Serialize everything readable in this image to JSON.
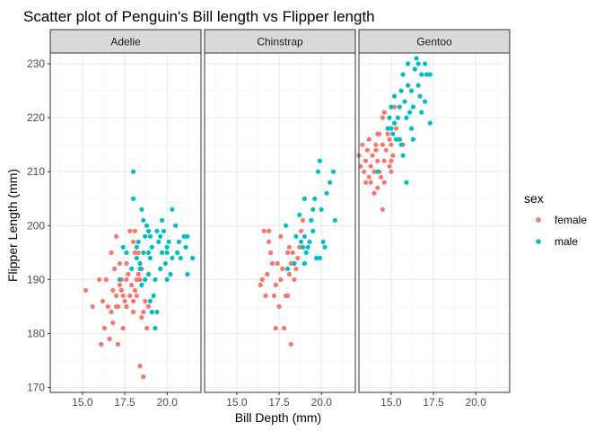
{
  "chart_data": {
    "type": "scatter",
    "title": "Scatter plot of Penguin's Bill length vs Flipper length",
    "xlabel": "Bill Depth (mm)",
    "ylabel": "Flipper Length (mm)",
    "xlim": [
      13.1,
      22.0
    ],
    "ylim": [
      169.1,
      232.0
    ],
    "x_ticks": [
      "15.0",
      "17.5",
      "20.0"
    ],
    "y_ticks": [
      "170",
      "180",
      "190",
      "200",
      "210",
      "220",
      "230"
    ],
    "grid": true,
    "legend": {
      "title": "sex",
      "placement": "right"
    },
    "colors": {
      "female": "#F8766D",
      "male": "#00BFC4"
    },
    "facets": [
      {
        "name": "Adelie",
        "series": [
          {
            "name": "female",
            "points": [
              [
                16.1,
                178
              ],
              [
                16.3,
                181
              ],
              [
                16.6,
                179
              ],
              [
                16.5,
                185
              ],
              [
                16.7,
                184
              ],
              [
                16.8,
                182
              ],
              [
                17.0,
                185
              ],
              [
                17.0,
                187
              ],
              [
                17.1,
                185
              ],
              [
                17.2,
                189
              ],
              [
                17.3,
                190
              ],
              [
                17.3,
                188
              ],
              [
                17.4,
                187
              ],
              [
                17.5,
                186
              ],
              [
                17.6,
                185
              ],
              [
                17.6,
                190
              ],
              [
                17.7,
                191
              ],
              [
                17.8,
                187
              ],
              [
                17.9,
                189
              ],
              [
                18.0,
                184
              ],
              [
                18.0,
                186
              ],
              [
                18.1,
                188
              ],
              [
                18.2,
                190
              ],
              [
                18.2,
                187
              ],
              [
                18.3,
                191
              ],
              [
                18.4,
                193
              ],
              [
                18.4,
                190
              ],
              [
                18.5,
                183
              ],
              [
                18.6,
                184
              ],
              [
                18.7,
                186
              ],
              [
                18.7,
                190
              ],
              [
                18.8,
                181
              ],
              [
                18.9,
                185
              ],
              [
                18.1,
                195
              ],
              [
                18.3,
                195
              ],
              [
                18.1,
                199
              ],
              [
                17.8,
                199
              ],
              [
                18.4,
                174
              ],
              [
                18.6,
                172
              ],
              [
                17.1,
                178
              ],
              [
                15.2,
                188
              ],
              [
                15.6,
                185
              ],
              [
                16.2,
                186
              ],
              [
                16.8,
                188
              ],
              [
                16.4,
                190
              ],
              [
                16.9,
                192
              ],
              [
                17.2,
                193
              ],
              [
                17.4,
                181
              ],
              [
                16.0,
                190
              ],
              [
                17.0,
                198
              ],
              [
                17.6,
                193
              ],
              [
                18.0,
                197
              ],
              [
                18.5,
                192
              ],
              [
                16.7,
                195
              ]
            ]
          },
          {
            "name": "male",
            "points": [
              [
                17.2,
                190
              ],
              [
                17.4,
                196
              ],
              [
                17.6,
                195
              ],
              [
                17.9,
                192
              ],
              [
                18.0,
                210
              ],
              [
                18.0,
                205
              ],
              [
                18.2,
                196
              ],
              [
                18.3,
                197
              ],
              [
                18.4,
                193
              ],
              [
                18.5,
                189
              ],
              [
                18.5,
                203
              ],
              [
                18.6,
                201
              ],
              [
                18.6,
                195
              ],
              [
                18.7,
                190
              ],
              [
                18.7,
                198
              ],
              [
                18.8,
                200
              ],
              [
                18.9,
                195
              ],
              [
                18.9,
                191
              ],
              [
                19.0,
                198
              ],
              [
                19.0,
                194
              ],
              [
                19.1,
                196
              ],
              [
                19.1,
                184
              ],
              [
                19.2,
                187
              ],
              [
                19.3,
                190
              ],
              [
                19.4,
                199
              ],
              [
                19.4,
                184
              ],
              [
                19.5,
                197
              ],
              [
                19.6,
                192
              ],
              [
                19.7,
                195
              ],
              [
                19.7,
                201
              ],
              [
                19.8,
                199
              ],
              [
                19.9,
                193
              ],
              [
                20.0,
                196
              ],
              [
                20.0,
                190
              ],
              [
                20.1,
                197
              ],
              [
                20.2,
                191
              ],
              [
                20.3,
                194
              ],
              [
                20.5,
                200
              ],
              [
                20.6,
                195
              ],
              [
                20.7,
                197
              ],
              [
                20.8,
                194
              ],
              [
                21.1,
                196
              ],
              [
                21.2,
                191
              ],
              [
                21.5,
                194
              ],
              [
                18.2,
                194
              ],
              [
                18.9,
                199
              ],
              [
                19.3,
                181
              ],
              [
                19.6,
                198
              ],
              [
                20.3,
                203
              ],
              [
                21.0,
                198
              ],
              [
                19.0,
                186
              ],
              [
                20.0,
                195
              ],
              [
                18.4,
                192
              ],
              [
                21.2,
                198
              ]
            ]
          }
        ]
      },
      {
        "name": "Chinstrap",
        "series": [
          {
            "name": "female",
            "points": [
              [
                16.4,
                189
              ],
              [
                16.5,
                190
              ],
              [
                16.6,
                199
              ],
              [
                16.7,
                187
              ],
              [
                16.8,
                191
              ],
              [
                16.9,
                197
              ],
              [
                17.0,
                195
              ],
              [
                17.1,
                193
              ],
              [
                17.2,
                187
              ],
              [
                17.3,
                181
              ],
              [
                17.5,
                185
              ],
              [
                17.6,
                190
              ],
              [
                17.6,
                198
              ],
              [
                17.7,
                192
              ],
              [
                17.8,
                181
              ],
              [
                17.9,
                187
              ],
              [
                18.0,
                195
              ],
              [
                18.1,
                191
              ],
              [
                18.2,
                178
              ],
              [
                18.2,
                193
              ],
              [
                18.3,
                195
              ],
              [
                18.4,
                190
              ],
              [
                18.5,
                192
              ],
              [
                18.6,
                194
              ],
              [
                18.7,
                196
              ],
              [
                18.8,
                199
              ],
              [
                18.9,
                201
              ],
              [
                17.3,
                189
              ],
              [
                18.1,
                196
              ],
              [
                17.4,
                193
              ],
              [
                16.9,
                199
              ],
              [
                18.0,
                187
              ]
            ]
          },
          {
            "name": "male",
            "points": [
              [
                17.9,
                200
              ],
              [
                18.0,
                192
              ],
              [
                18.4,
                193
              ],
              [
                18.5,
                198
              ],
              [
                18.7,
                202
              ],
              [
                18.8,
                197
              ],
              [
                18.9,
                196
              ],
              [
                19.0,
                198
              ],
              [
                19.0,
                193
              ],
              [
                19.1,
                195
              ],
              [
                19.2,
                196
              ],
              [
                19.3,
                197
              ],
              [
                19.4,
                201
              ],
              [
                19.5,
                203
              ],
              [
                19.5,
                199
              ],
              [
                19.6,
                205
              ],
              [
                19.7,
                194
              ],
              [
                19.8,
                210
              ],
              [
                19.9,
                212
              ],
              [
                20.0,
                203
              ],
              [
                20.1,
                197
              ],
              [
                20.3,
                206
              ],
              [
                20.5,
                208
              ],
              [
                20.7,
                210
              ],
              [
                20.8,
                201
              ],
              [
                19.9,
                194
              ],
              [
                19.0,
                205
              ],
              [
                20.2,
                196
              ]
            ]
          }
        ]
      },
      {
        "name": "Gentoo",
        "series": [
          {
            "name": "female",
            "points": [
              [
                13.1,
                213
              ],
              [
                13.2,
                211
              ],
              [
                13.3,
                215
              ],
              [
                13.4,
                210
              ],
              [
                13.5,
                212
              ],
              [
                13.6,
                214
              ],
              [
                13.7,
                209
              ],
              [
                13.7,
                216
              ],
              [
                13.8,
                211
              ],
              [
                13.9,
                213
              ],
              [
                14.0,
                210
              ],
              [
                14.1,
                215
              ],
              [
                14.2,
                217
              ],
              [
                14.2,
                212
              ],
              [
                14.3,
                210
              ],
              [
                14.4,
                209
              ],
              [
                14.5,
                215
              ],
              [
                14.5,
                220
              ],
              [
                14.6,
                212
              ],
              [
                14.6,
                208
              ],
              [
                14.7,
                214
              ],
              [
                14.8,
                217
              ],
              [
                14.9,
                216
              ],
              [
                14.9,
                211
              ],
              [
                15.0,
                212
              ],
              [
                15.0,
                215
              ],
              [
                15.1,
                213
              ],
              [
                15.2,
                222
              ],
              [
                15.3,
                218
              ],
              [
                15.5,
                216
              ],
              [
                14.5,
                203
              ],
              [
                14.0,
                206
              ],
              [
                13.8,
                208
              ],
              [
                14.3,
                217
              ],
              [
                14.6,
                221
              ],
              [
                13.5,
                208
              ],
              [
                14.1,
                214
              ],
              [
                15.0,
                210
              ],
              [
                14.2,
                207
              ],
              [
                15.7,
                215
              ]
            ]
          },
          {
            "name": "male",
            "points": [
              [
                14.2,
                210
              ],
              [
                14.8,
                218
              ],
              [
                14.9,
                220
              ],
              [
                15.0,
                222
              ],
              [
                15.1,
                217
              ],
              [
                15.2,
                224
              ],
              [
                15.3,
                216
              ],
              [
                15.4,
                220
              ],
              [
                15.5,
                222
              ],
              [
                15.6,
                225
              ],
              [
                15.7,
                213
              ],
              [
                15.7,
                228
              ],
              [
                15.8,
                223
              ],
              [
                15.9,
                220
              ],
              [
                16.0,
                226
              ],
              [
                16.0,
                230
              ],
              [
                16.1,
                221
              ],
              [
                16.2,
                218
              ],
              [
                16.3,
                216
              ],
              [
                16.3,
                222
              ],
              [
                16.4,
                229
              ],
              [
                16.5,
                231
              ],
              [
                16.6,
                230
              ],
              [
                16.7,
                224
              ],
              [
                16.8,
                228
              ],
              [
                17.0,
                230
              ],
              [
                17.1,
                228
              ],
              [
                17.3,
                228
              ],
              [
                17.3,
                219
              ],
              [
                15.9,
                208
              ],
              [
                15.0,
                218
              ],
              [
                16.2,
                225
              ],
              [
                16.6,
                226
              ],
              [
                15.6,
                215
              ],
              [
                16.8,
                221
              ],
              [
                15.2,
                219
              ],
              [
                17.0,
                223
              ],
              [
                15.5,
                216
              ]
            ]
          }
        ]
      }
    ]
  }
}
